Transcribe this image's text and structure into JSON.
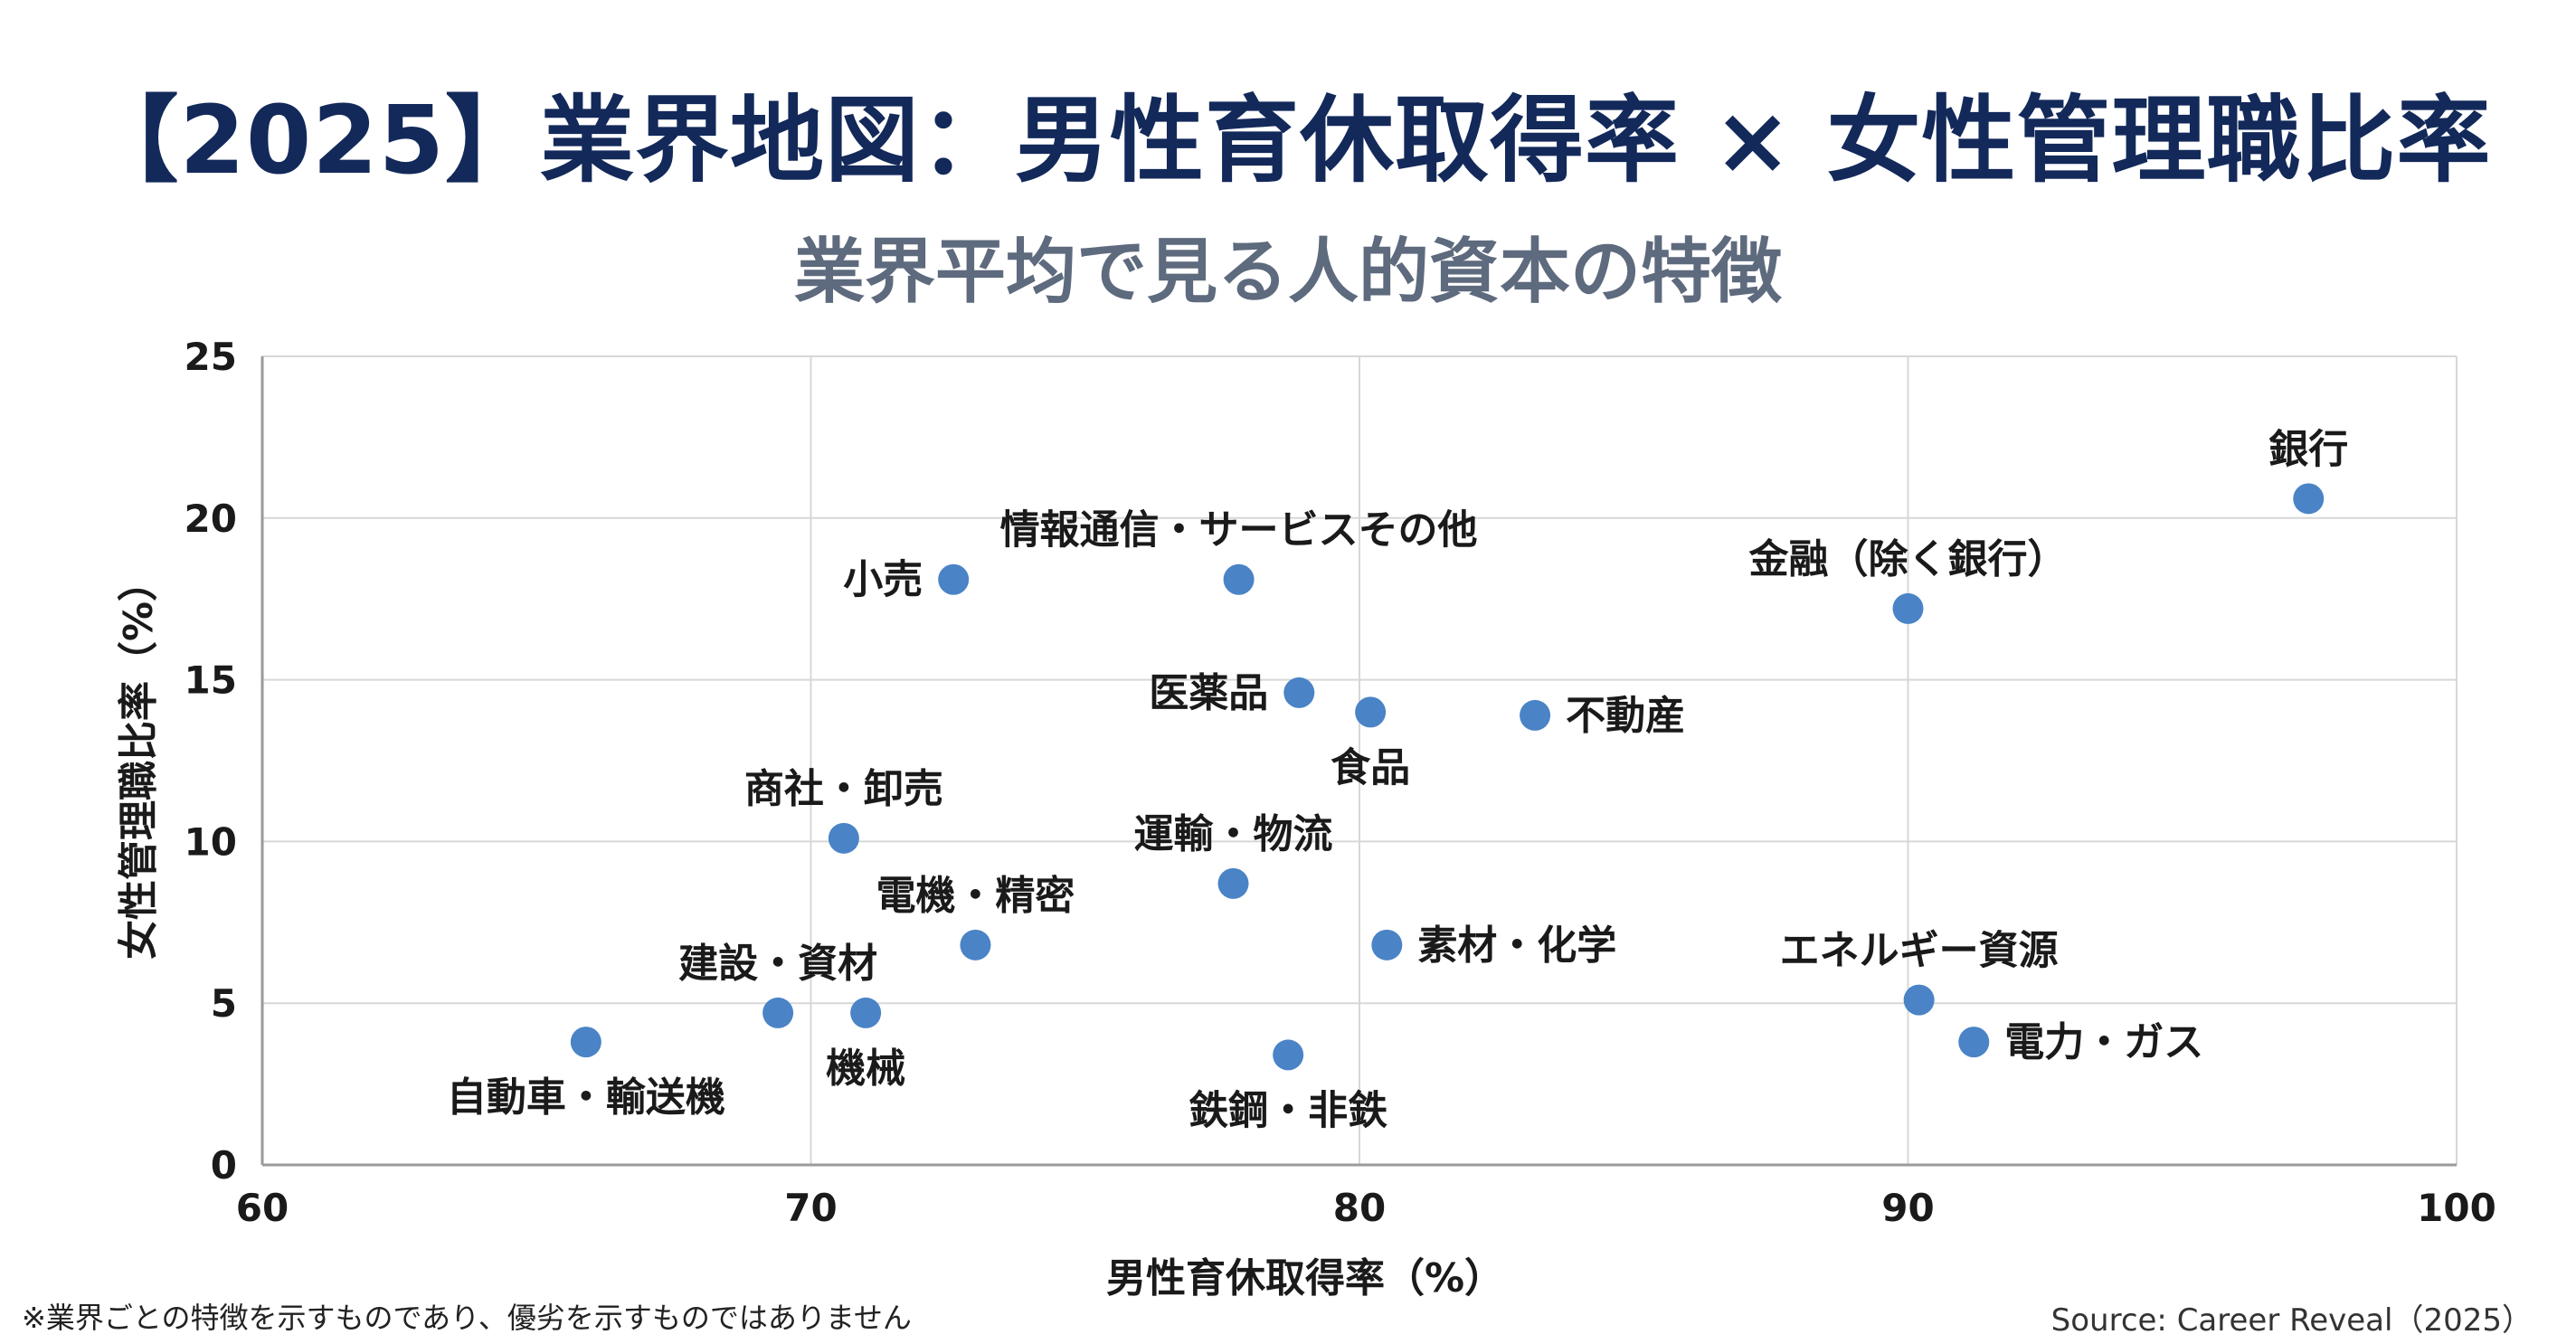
{
  "footnote": "※業界ごとの特徴を示すものであり、優劣を示すものではありません",
  "source": "Source: Career Reveal（2025）",
  "colors": {
    "point": "#4a83c6",
    "grid": "#d7d7d7",
    "title": "#13295a",
    "subtitle": "#5e6a7d"
  },
  "chart_data": {
    "type": "scatter",
    "title": "【2025】業界地図：男性育休取得率 × 女性管理職比率",
    "subtitle": "業界平均で見る人的資本の特徴",
    "xlabel": "男性育休取得率（%）",
    "ylabel": "女性管理職比率（%）",
    "xlim": [
      60,
      100
    ],
    "ylim": [
      0,
      25
    ],
    "xticks": [
      60,
      70,
      80,
      90,
      100
    ],
    "yticks": [
      0,
      5,
      10,
      15,
      20,
      25
    ],
    "grid": true,
    "legend": "none",
    "points": [
      {
        "label": "銀行",
        "x": 97.3,
        "y": 20.6,
        "label_pos": "top"
      },
      {
        "label": "金融（除く銀行）",
        "x": 90.0,
        "y": 17.2,
        "label_pos": "top"
      },
      {
        "label": "情報通信・サービスその他",
        "x": 77.8,
        "y": 18.1,
        "label_pos": "top"
      },
      {
        "label": "小売",
        "x": 72.6,
        "y": 18.1,
        "label_pos": "left"
      },
      {
        "label": "医薬品",
        "x": 78.9,
        "y": 14.6,
        "label_pos": "left"
      },
      {
        "label": "食品",
        "x": 80.2,
        "y": 14.0,
        "label_pos": "bottom"
      },
      {
        "label": "不動産",
        "x": 83.2,
        "y": 13.9,
        "label_pos": "right"
      },
      {
        "label": "商社・卸売",
        "x": 70.6,
        "y": 10.1,
        "label_pos": "top"
      },
      {
        "label": "運輸・物流",
        "x": 77.7,
        "y": 8.7,
        "label_pos": "top"
      },
      {
        "label": "電機・精密",
        "x": 73.0,
        "y": 6.8,
        "label_pos": "top"
      },
      {
        "label": "素材・化学",
        "x": 80.5,
        "y": 6.8,
        "label_pos": "right"
      },
      {
        "label": "エネルギー資源",
        "x": 90.2,
        "y": 5.1,
        "label_pos": "top"
      },
      {
        "label": "電力・ガス",
        "x": 91.2,
        "y": 3.8,
        "label_pos": "right"
      },
      {
        "label": "建設・資材",
        "x": 69.4,
        "y": 4.7,
        "label_pos": "top"
      },
      {
        "label": "機械",
        "x": 71.0,
        "y": 4.7,
        "label_pos": "bottom"
      },
      {
        "label": "自動車・輸送機",
        "x": 65.9,
        "y": 3.8,
        "label_pos": "bottom"
      },
      {
        "label": "鉄鋼・非鉄",
        "x": 78.7,
        "y": 3.4,
        "label_pos": "bottom"
      }
    ]
  }
}
